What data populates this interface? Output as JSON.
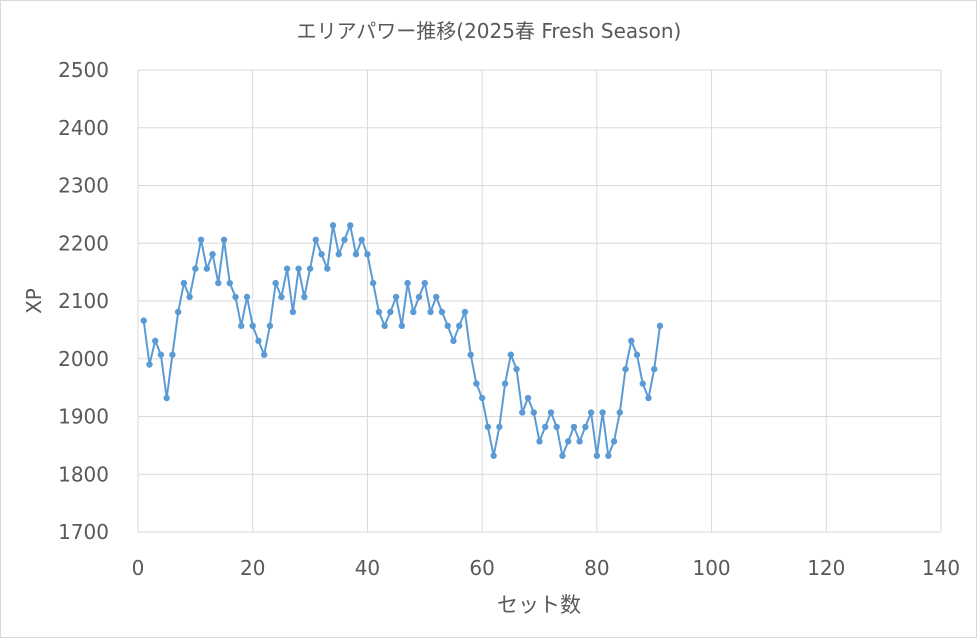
{
  "chart_data": {
    "type": "line",
    "title": "エリアパワー推移(2025春 Fresh Season)",
    "xlabel": "セット数",
    "ylabel": "XP",
    "xlim": [
      0,
      140
    ],
    "ylim": [
      1700,
      2500
    ],
    "x_ticks": [
      0,
      20,
      40,
      60,
      80,
      100,
      120,
      140
    ],
    "y_ticks": [
      1700,
      1800,
      1900,
      2000,
      2100,
      2200,
      2300,
      2400,
      2500
    ],
    "grid": true,
    "legend": "none",
    "series": [
      {
        "color": "#5b9bd5",
        "x": [
          1,
          2,
          3,
          4,
          5,
          6,
          7,
          8,
          9,
          10,
          11,
          12,
          13,
          14,
          15,
          16,
          17,
          18,
          19,
          20,
          21,
          22,
          23,
          24,
          25,
          26,
          27,
          28,
          29,
          30,
          31,
          32,
          33,
          34,
          35,
          36,
          37,
          38,
          39,
          40,
          41,
          42,
          43,
          44,
          45,
          46,
          47,
          48,
          49,
          50,
          51,
          52,
          53,
          54,
          55,
          56,
          57,
          58,
          59,
          60,
          61,
          62,
          63,
          64,
          65,
          66,
          67,
          68,
          69,
          70,
          71,
          72,
          73,
          74,
          75,
          76,
          77,
          78,
          79,
          80,
          81,
          82,
          83,
          84,
          85,
          86,
          87,
          88,
          89,
          90,
          91
        ],
        "y": [
          2066,
          1990,
          2031,
          2007,
          1932,
          2007,
          2081,
          2131,
          2107,
          2156,
          2206,
          2156,
          2181,
          2131,
          2206,
          2131,
          2107,
          2057,
          2107,
          2057,
          2031,
          2007,
          2057,
          2131,
          2107,
          2156,
          2081,
          2156,
          2107,
          2156,
          2206,
          2181,
          2156,
          2231,
          2181,
          2206,
          2231,
          2181,
          2206,
          2181,
          2131,
          2081,
          2057,
          2081,
          2107,
          2057,
          2131,
          2081,
          2107,
          2131,
          2081,
          2107,
          2081,
          2057,
          2031,
          2057,
          2081,
          2007,
          1957,
          1932,
          1882,
          1832,
          1882,
          1957,
          2007,
          1982,
          1907,
          1932,
          1907,
          1857,
          1882,
          1907,
          1882,
          1832,
          1857,
          1882,
          1857,
          1882,
          1907,
          1832,
          1907,
          1832,
          1857,
          1907,
          1982,
          2031,
          2007,
          1957,
          1932,
          1982,
          2057
        ]
      }
    ]
  }
}
